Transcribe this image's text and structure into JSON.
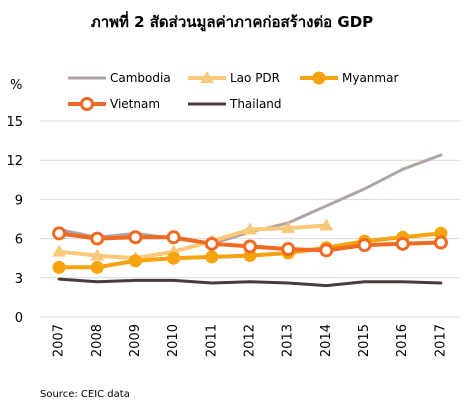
{
  "chart_data": {
    "type": "line",
    "title": "ภาพที่ 2 สัดส่วนมูลค่าภาคก่อสร้างต่อ GDP",
    "ylabel": "%",
    "xlabel": "",
    "source": "Source: CEIC data",
    "categories": [
      "2007",
      "2008",
      "2009",
      "2010",
      "2011",
      "2012",
      "2013",
      "2014",
      "2015",
      "2016",
      "2017"
    ],
    "ylim": [
      0,
      15
    ],
    "yticks": [
      0,
      3,
      6,
      9,
      12,
      15
    ],
    "grid": true,
    "legend_position": "top",
    "series": [
      {
        "name": "Cambodia",
        "color": "#b3a3a3",
        "marker": "none",
        "values": [
          6.7,
          6.1,
          6.4,
          6.0,
          5.6,
          6.5,
          7.2,
          8.5,
          9.8,
          11.3,
          12.4
        ]
      },
      {
        "name": "Lao PDR",
        "color": "#f9c97a",
        "marker": "triangle",
        "values": [
          5.0,
          4.7,
          4.5,
          5.0,
          5.8,
          6.7,
          6.8,
          7.0,
          null,
          null,
          null
        ]
      },
      {
        "name": "Myanmar",
        "color": "#f5a30f",
        "marker": "circle",
        "values": [
          3.8,
          3.8,
          4.3,
          4.5,
          4.6,
          4.7,
          4.9,
          5.3,
          5.8,
          6.1,
          6.4
        ]
      },
      {
        "name": "Vietnam",
        "color": "#ef6a22",
        "marker": "circle-hollow",
        "values": [
          6.4,
          6.0,
          6.1,
          6.1,
          5.6,
          5.4,
          5.2,
          5.1,
          5.5,
          5.6,
          5.7
        ]
      },
      {
        "name": "Thailand",
        "color": "#4a3b3b",
        "marker": "none",
        "values": [
          2.9,
          2.7,
          2.8,
          2.8,
          2.6,
          2.7,
          2.6,
          2.4,
          2.7,
          2.7,
          2.6
        ]
      }
    ]
  }
}
